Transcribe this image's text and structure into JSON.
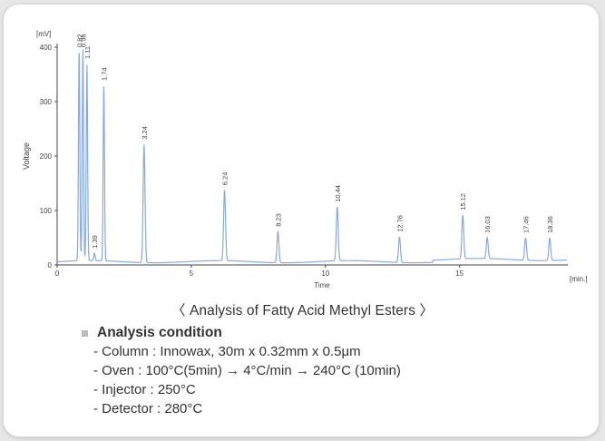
{
  "chart_data": {
    "type": "line",
    "title": "",
    "xlabel": "Time",
    "ylabel": "Voltage",
    "y_unit_label": "[mV]",
    "x_unit_label": "[min.]",
    "xlim": [
      0,
      19
    ],
    "ylim": [
      0,
      400
    ],
    "x_ticks": [
      0,
      5,
      10,
      15
    ],
    "y_ticks": [
      0,
      100,
      200,
      300,
      400
    ],
    "grid": false,
    "line_color": "#8aa9d6",
    "peaks": [
      {
        "label": "0.82",
        "x": 0.82,
        "y": 400
      },
      {
        "label": "0.96",
        "x": 0.96,
        "y": 400
      },
      {
        "label": "1.11",
        "x": 1.11,
        "y": 370
      },
      {
        "label": "1.39",
        "x": 1.39,
        "y": 22
      },
      {
        "label": "1.74",
        "x": 1.74,
        "y": 330
      },
      {
        "label": "3.24",
        "x": 3.24,
        "y": 222
      },
      {
        "label": "6.24",
        "x": 6.24,
        "y": 138
      },
      {
        "label": "8.23",
        "x": 8.23,
        "y": 62
      },
      {
        "label": "10.44",
        "x": 10.44,
        "y": 107
      },
      {
        "label": "12.76",
        "x": 12.76,
        "y": 52
      },
      {
        "label": "15.12",
        "x": 15.12,
        "y": 92
      },
      {
        "label": "16.03",
        "x": 16.03,
        "y": 50
      },
      {
        "label": "17.46",
        "x": 17.46,
        "y": 50
      },
      {
        "label": "18.36",
        "x": 18.36,
        "y": 50
      }
    ]
  },
  "caption": "〈 Analysis of Fatty Acid Methyl Esters 〉",
  "conditions": {
    "heading": "Analysis condition",
    "items": [
      "- Column : Innowax, 30m x 0.32mm x 0.5μm",
      "- Oven : 100°C(5min) → 4°C/min → 240°C (10min)",
      "- Injector : 250°C",
      "- Detector : 280°C"
    ]
  }
}
